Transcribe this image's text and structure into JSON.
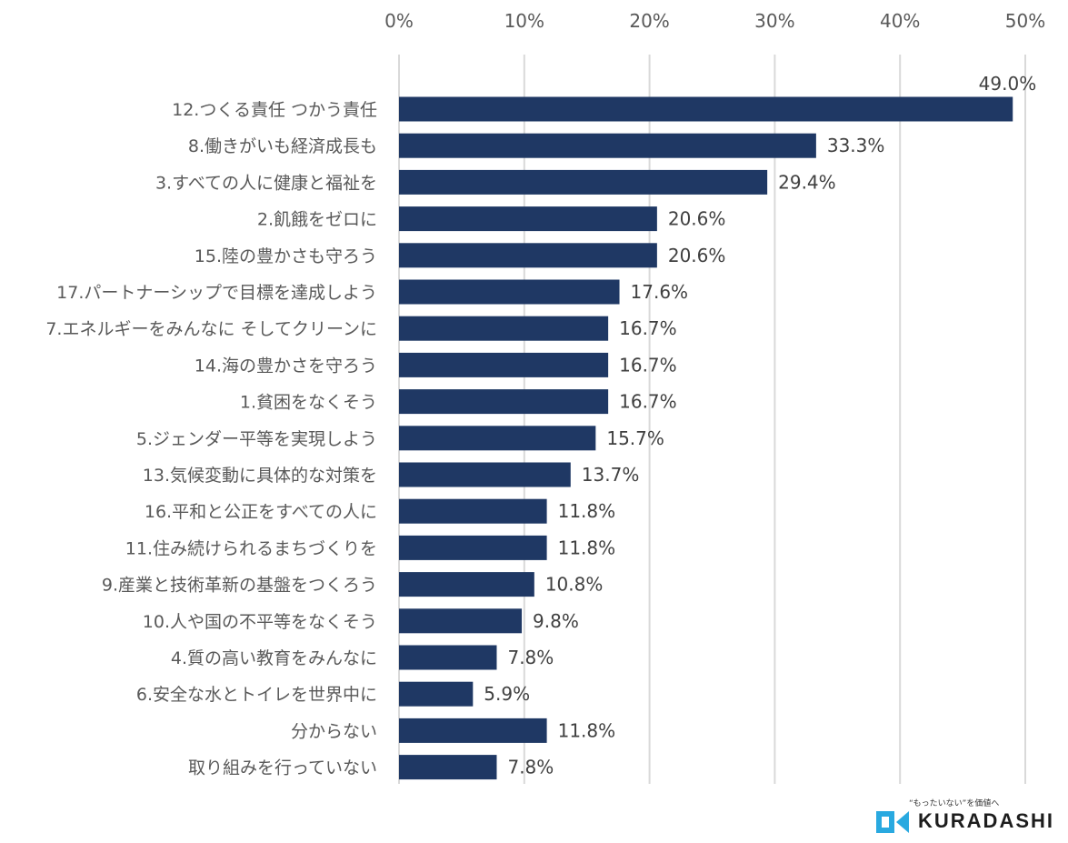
{
  "chart_data": {
    "type": "bar",
    "orientation": "horizontal",
    "categories": [
      "12.つくる責任 つかう責任",
      "8.働きがいも経済成長も",
      "3.すべての人に健康と福祉を",
      "2.飢餓をゼロに",
      "15.陸の豊かさも守ろう",
      "17.パートナーシップで目標を達成しよう",
      "7.エネルギーをみんなに そしてクリーンに",
      "14.海の豊かさを守ろう",
      "1.貧困をなくそう",
      "5.ジェンダー平等を実現しよう",
      "13.気候変動に具体的な対策を",
      "16.平和と公正をすべての人に",
      "11.住み続けられるまちづくりを",
      "9.産業と技術革新の基盤をつくろう",
      "10.人や国の不平等をなくそう",
      "4.質の高い教育をみんなに",
      "6.安全な水とトイレを世界中に",
      "分からない",
      "取り組みを行っていない"
    ],
    "values": [
      49.0,
      33.3,
      29.4,
      20.6,
      20.6,
      17.6,
      16.7,
      16.7,
      16.7,
      15.7,
      13.7,
      11.8,
      11.8,
      10.8,
      9.8,
      7.8,
      5.9,
      11.8,
      7.8
    ],
    "value_labels": [
      "49.0%",
      "33.3%",
      "29.4%",
      "20.6%",
      "20.6%",
      "17.6%",
      "16.7%",
      "16.7%",
      "16.7%",
      "15.7%",
      "13.7%",
      "11.8%",
      "11.8%",
      "10.8%",
      "9.8%",
      "7.8%",
      "5.9%",
      "11.8%",
      "7.8%"
    ],
    "xlim": [
      0,
      50
    ],
    "x_ticks": [
      0,
      10,
      20,
      30,
      40,
      50
    ],
    "x_tick_labels": [
      "0%",
      "10%",
      "20%",
      "30%",
      "40%",
      "50%"
    ],
    "x_axis_position": "top",
    "grid": true,
    "bar_color": "#1f3864",
    "grid_color": "#d9d9d9",
    "title": "",
    "xlabel": "",
    "ylabel": ""
  },
  "logo": {
    "tagline": "“もったいない”を価値へ",
    "brand": "KURADASHI",
    "icon": "kuradashi-logo-icon",
    "icon_color": "#29a9e0"
  }
}
